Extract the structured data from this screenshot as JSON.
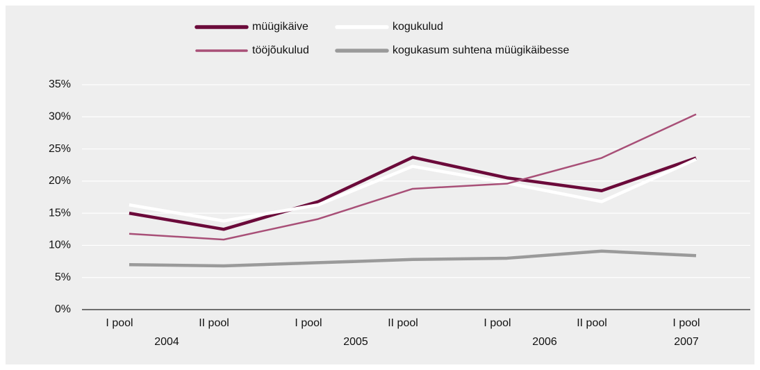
{
  "chart_data": {
    "type": "line",
    "categories": [
      "I pool",
      "II pool",
      "I pool",
      "II pool",
      "I pool",
      "II pool",
      "I pool"
    ],
    "category_groups": [
      "2004",
      "2005",
      "2006",
      "2007"
    ],
    "series": [
      {
        "name": "müügikäive",
        "color": "#6b0a3a",
        "line_width": 4.5,
        "values": [
          15.0,
          12.5,
          16.8,
          23.7,
          20.5,
          18.5,
          23.6
        ]
      },
      {
        "name": "kogukulud",
        "color": "#ffffff",
        "line_width": 4.5,
        "values": [
          16.3,
          13.8,
          16.3,
          22.3,
          19.7,
          16.8,
          23.4
        ]
      },
      {
        "name": "tööjõukulud",
        "color": "#a84f77",
        "line_width": 2.5,
        "values": [
          11.8,
          10.9,
          14.1,
          18.8,
          19.6,
          23.6,
          30.4
        ]
      },
      {
        "name": "kogukasum suhtena müügikäibesse",
        "color": "#9a9a9a",
        "line_width": 4.5,
        "values": [
          7.0,
          6.8,
          7.3,
          7.8,
          8.0,
          9.1,
          8.4
        ]
      }
    ],
    "ylim": [
      0,
      35
    ],
    "yticks": [
      {
        "value": 0,
        "label": "0%"
      },
      {
        "value": 5,
        "label": "5%"
      },
      {
        "value": 10,
        "label": "10%"
      },
      {
        "value": 15,
        "label": "15%"
      },
      {
        "value": 20,
        "label": "20%"
      },
      {
        "value": 25,
        "label": "25%"
      },
      {
        "value": 30,
        "label": "30%"
      },
      {
        "value": 35,
        "label": "35%"
      }
    ],
    "grid": true
  }
}
